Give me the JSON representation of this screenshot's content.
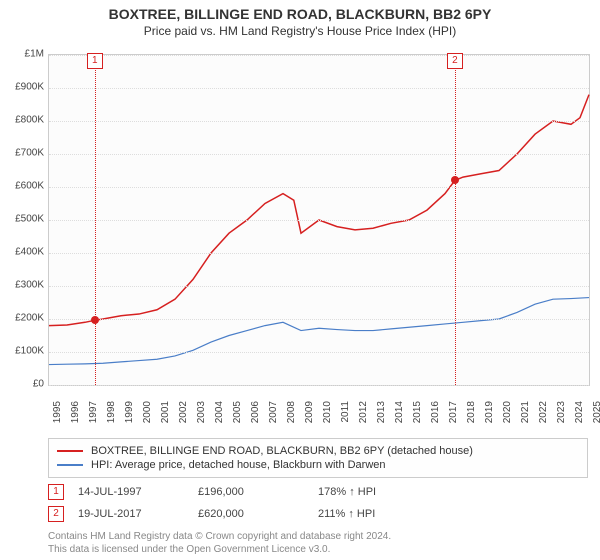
{
  "title": "BOXTREE, BILLINGE END ROAD, BLACKBURN, BB2 6PY",
  "subtitle": "Price paid vs. HM Land Registry's House Price Index (HPI)",
  "chart": {
    "type": "line",
    "background_color": "#fcfcfc",
    "grid_color": "#dddddd",
    "border_color": "#cccccc",
    "x_min": 1995,
    "x_max": 2025,
    "y_min": 0,
    "y_max": 1000000,
    "y_ticks": [
      0,
      100000,
      200000,
      300000,
      400000,
      500000,
      600000,
      700000,
      800000,
      900000,
      1000000
    ],
    "y_tick_labels": [
      "£0",
      "£100K",
      "£200K",
      "£300K",
      "£400K",
      "£500K",
      "£600K",
      "£700K",
      "£800K",
      "£900K",
      "£1M"
    ],
    "x_ticks": [
      1995,
      1996,
      1997,
      1998,
      1999,
      2000,
      2001,
      2002,
      2003,
      2004,
      2005,
      2006,
      2007,
      2008,
      2009,
      2010,
      2011,
      2012,
      2013,
      2014,
      2015,
      2016,
      2017,
      2018,
      2019,
      2020,
      2021,
      2022,
      2023,
      2024,
      2025
    ],
    "series": [
      {
        "key": "price_paid",
        "label": "BOXTREE, BILLINGE END ROAD, BLACKBURN, BB2 6PY (detached house)",
        "color": "#d62020",
        "width": 1.5,
        "data": [
          [
            1995,
            180000
          ],
          [
            1996,
            182000
          ],
          [
            1997,
            190000
          ],
          [
            1997.54,
            196000
          ],
          [
            1998,
            200000
          ],
          [
            1999,
            210000
          ],
          [
            2000,
            215000
          ],
          [
            2001,
            228000
          ],
          [
            2002,
            260000
          ],
          [
            2003,
            320000
          ],
          [
            2004,
            400000
          ],
          [
            2005,
            460000
          ],
          [
            2006,
            500000
          ],
          [
            2007,
            550000
          ],
          [
            2008,
            580000
          ],
          [
            2008.6,
            560000
          ],
          [
            2009,
            460000
          ],
          [
            2010,
            500000
          ],
          [
            2011,
            480000
          ],
          [
            2012,
            470000
          ],
          [
            2013,
            475000
          ],
          [
            2014,
            490000
          ],
          [
            2015,
            500000
          ],
          [
            2016,
            530000
          ],
          [
            2017,
            580000
          ],
          [
            2017.55,
            620000
          ],
          [
            2018,
            630000
          ],
          [
            2019,
            640000
          ],
          [
            2020,
            650000
          ],
          [
            2021,
            700000
          ],
          [
            2022,
            760000
          ],
          [
            2023,
            800000
          ],
          [
            2024,
            790000
          ],
          [
            2024.5,
            810000
          ],
          [
            2025,
            880000
          ]
        ]
      },
      {
        "key": "hpi",
        "label": "HPI: Average price, detached house, Blackburn with Darwen",
        "color": "#4a7ec8",
        "width": 1.2,
        "data": [
          [
            1995,
            62000
          ],
          [
            1996,
            63000
          ],
          [
            1997,
            64000
          ],
          [
            1998,
            66000
          ],
          [
            1999,
            70000
          ],
          [
            2000,
            74000
          ],
          [
            2001,
            78000
          ],
          [
            2002,
            88000
          ],
          [
            2003,
            105000
          ],
          [
            2004,
            130000
          ],
          [
            2005,
            150000
          ],
          [
            2006,
            165000
          ],
          [
            2007,
            180000
          ],
          [
            2008,
            190000
          ],
          [
            2009,
            165000
          ],
          [
            2010,
            172000
          ],
          [
            2011,
            168000
          ],
          [
            2012,
            165000
          ],
          [
            2013,
            165000
          ],
          [
            2014,
            170000
          ],
          [
            2015,
            175000
          ],
          [
            2016,
            180000
          ],
          [
            2017,
            185000
          ],
          [
            2018,
            190000
          ],
          [
            2019,
            195000
          ],
          [
            2020,
            200000
          ],
          [
            2021,
            220000
          ],
          [
            2022,
            245000
          ],
          [
            2023,
            260000
          ],
          [
            2024,
            262000
          ],
          [
            2025,
            265000
          ]
        ]
      }
    ],
    "sale_markers": [
      {
        "n": "1",
        "x": 1997.54,
        "y": 196000,
        "color": "#d62020"
      },
      {
        "n": "2",
        "x": 2017.55,
        "y": 620000,
        "color": "#d62020"
      }
    ]
  },
  "sales": [
    {
      "n": "1",
      "date": "14-JUL-1997",
      "price": "£196,000",
      "delta": "178% ↑ HPI",
      "color": "#d62020"
    },
    {
      "n": "2",
      "date": "19-JUL-2017",
      "price": "£620,000",
      "delta": "211% ↑ HPI",
      "color": "#d62020"
    }
  ],
  "attribution_line1": "Contains HM Land Registry data © Crown copyright and database right 2024.",
  "attribution_line2": "This data is licensed under the Open Government Licence v3.0.",
  "font_sizes": {
    "title": 14,
    "subtitle": 12,
    "tick": 10,
    "legend": 11,
    "attribution": 10
  }
}
